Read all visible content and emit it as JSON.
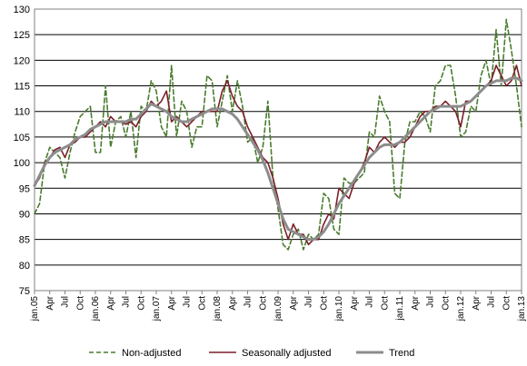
{
  "chart_data": {
    "type": "line",
    "title": "",
    "xlabel": "",
    "ylabel": "",
    "ylim": [
      75,
      130
    ],
    "yticks": [
      75,
      80,
      85,
      90,
      95,
      100,
      105,
      110,
      115,
      120,
      125,
      130
    ],
    "grid": "horizontal",
    "legend_position": "bottom",
    "x": [
      "jan.05",
      "Feb",
      "Mar",
      "Apr",
      "May",
      "Jun",
      "Jul",
      "Aug",
      "Sep",
      "Oct",
      "Nov",
      "Dec",
      "jan.06",
      "Feb",
      "Mar",
      "Apr",
      "May",
      "Jun",
      "Jul",
      "Aug",
      "Sep",
      "Oct",
      "Nov",
      "Dec",
      "jan.07",
      "Feb",
      "Mar",
      "Apr",
      "May",
      "Jun",
      "Jul",
      "Aug",
      "Sep",
      "Oct",
      "Nov",
      "Dec",
      "jan.08",
      "Feb",
      "Mar",
      "Apr",
      "May",
      "Jun",
      "Jul",
      "Aug",
      "Sep",
      "Oct",
      "Nov",
      "Dec",
      "jan.09",
      "Feb",
      "Mar",
      "Apr",
      "May",
      "Jun",
      "Jul",
      "Aug",
      "Sep",
      "Oct",
      "Nov",
      "Dec",
      "jan.10",
      "Feb",
      "Mar",
      "Apr",
      "May",
      "Jun",
      "Jul",
      "Aug",
      "Sep",
      "Oct",
      "Nov",
      "Dec",
      "jan.11",
      "Feb",
      "Mar",
      "Apr",
      "May",
      "Jun",
      "Jul",
      "Aug",
      "Sep",
      "Oct",
      "Nov",
      "Dec",
      "jan.12",
      "Feb",
      "Mar",
      "Apr",
      "May",
      "Jun",
      "Jul",
      "Aug",
      "Sep",
      "Oct",
      "Nov",
      "Dec",
      "jan.13"
    ],
    "xtick_labels": [
      "jan.05",
      "Apr",
      "Jul",
      "Oct",
      "jan.06",
      "Apr",
      "Jul",
      "Oct",
      "jan.07",
      "Apr",
      "Jul",
      "Oct",
      "jan.08",
      "Apr",
      "Jul",
      "Oct",
      "jan.09",
      "Apr",
      "Jul",
      "Oct",
      "jan.10",
      "Apr",
      "Jul",
      "Oct",
      "jan.11",
      "Apr",
      "Jul",
      "Oct",
      "jan.12",
      "Apr",
      "Jul",
      "Oct",
      "jan.13"
    ],
    "series": [
      {
        "name": "Non-adjusted",
        "color": "#4a7c2e",
        "style": "dashed",
        "values": [
          90,
          92,
          100,
          103,
          102,
          101,
          97,
          102,
          106,
          109,
          110,
          111,
          102,
          102,
          115,
          103,
          108,
          109,
          105,
          110,
          101,
          111,
          110,
          116,
          114,
          107,
          105,
          119,
          105,
          112,
          110,
          103,
          107,
          107,
          117,
          116,
          107,
          112,
          117,
          110,
          116,
          111,
          104,
          105,
          100,
          103,
          112,
          97,
          91,
          84,
          83,
          86,
          87,
          83,
          86,
          85,
          86,
          94,
          93,
          87,
          86,
          97,
          96,
          96,
          97,
          98,
          106,
          105,
          113,
          110,
          108,
          94,
          93,
          104,
          108,
          108,
          110,
          109,
          106,
          115,
          116,
          119,
          119,
          113,
          105,
          106,
          111,
          110,
          117,
          120,
          115,
          126,
          115,
          128,
          122,
          115,
          107
        ]
      },
      {
        "name": "Seasonally adjusted",
        "color": "#7b1f2a",
        "style": "solid",
        "values": [
          95.5,
          97,
          100,
          101,
          102.5,
          103,
          101,
          103.5,
          104,
          105,
          105,
          106,
          107,
          108,
          107,
          109,
          108,
          108,
          107.5,
          108,
          107,
          109,
          110,
          112,
          111,
          112,
          114,
          108,
          109,
          108,
          107,
          108,
          109,
          110,
          110,
          110,
          110,
          114,
          116,
          113,
          111,
          110,
          107,
          105,
          103,
          101,
          100,
          97,
          93,
          88,
          85,
          88,
          86,
          86,
          84,
          85,
          85,
          88,
          90,
          89,
          95,
          94,
          93,
          96,
          98,
          100,
          103,
          102,
          104,
          105,
          104,
          103,
          104,
          104,
          105,
          107,
          109,
          110,
          110,
          111,
          111,
          112,
          111,
          110,
          107,
          112,
          112,
          113,
          114,
          115,
          116,
          119,
          117,
          115,
          116,
          119,
          115
        ]
      },
      {
        "name": "Trend",
        "color": "#8c8c8c",
        "style": "solid",
        "values": [
          95.5,
          97.5,
          99.5,
          101,
          102,
          102.5,
          103,
          103.5,
          104.5,
          105,
          105.5,
          106.5,
          107,
          107.5,
          108,
          108,
          108,
          108,
          108,
          108.5,
          108.5,
          109.5,
          110.5,
          111.5,
          111,
          110.5,
          110,
          109,
          108.5,
          108,
          108,
          108.5,
          109,
          109.5,
          110,
          110.5,
          110.5,
          110.5,
          110,
          109.5,
          108.5,
          107,
          105.5,
          104,
          102.5,
          100.5,
          98,
          95,
          92,
          89,
          87,
          86.5,
          86,
          85.5,
          85,
          85,
          85.5,
          86.5,
          88,
          90,
          92,
          93.5,
          95,
          96.5,
          98,
          99.5,
          101,
          102,
          103,
          103.5,
          103.5,
          103.5,
          104,
          105,
          106,
          107,
          108,
          109,
          110,
          110.5,
          111,
          111,
          111,
          111,
          111,
          111.5,
          112,
          113,
          114,
          115,
          115.5,
          116,
          116,
          116,
          116.5,
          116.5,
          116
        ]
      }
    ]
  }
}
